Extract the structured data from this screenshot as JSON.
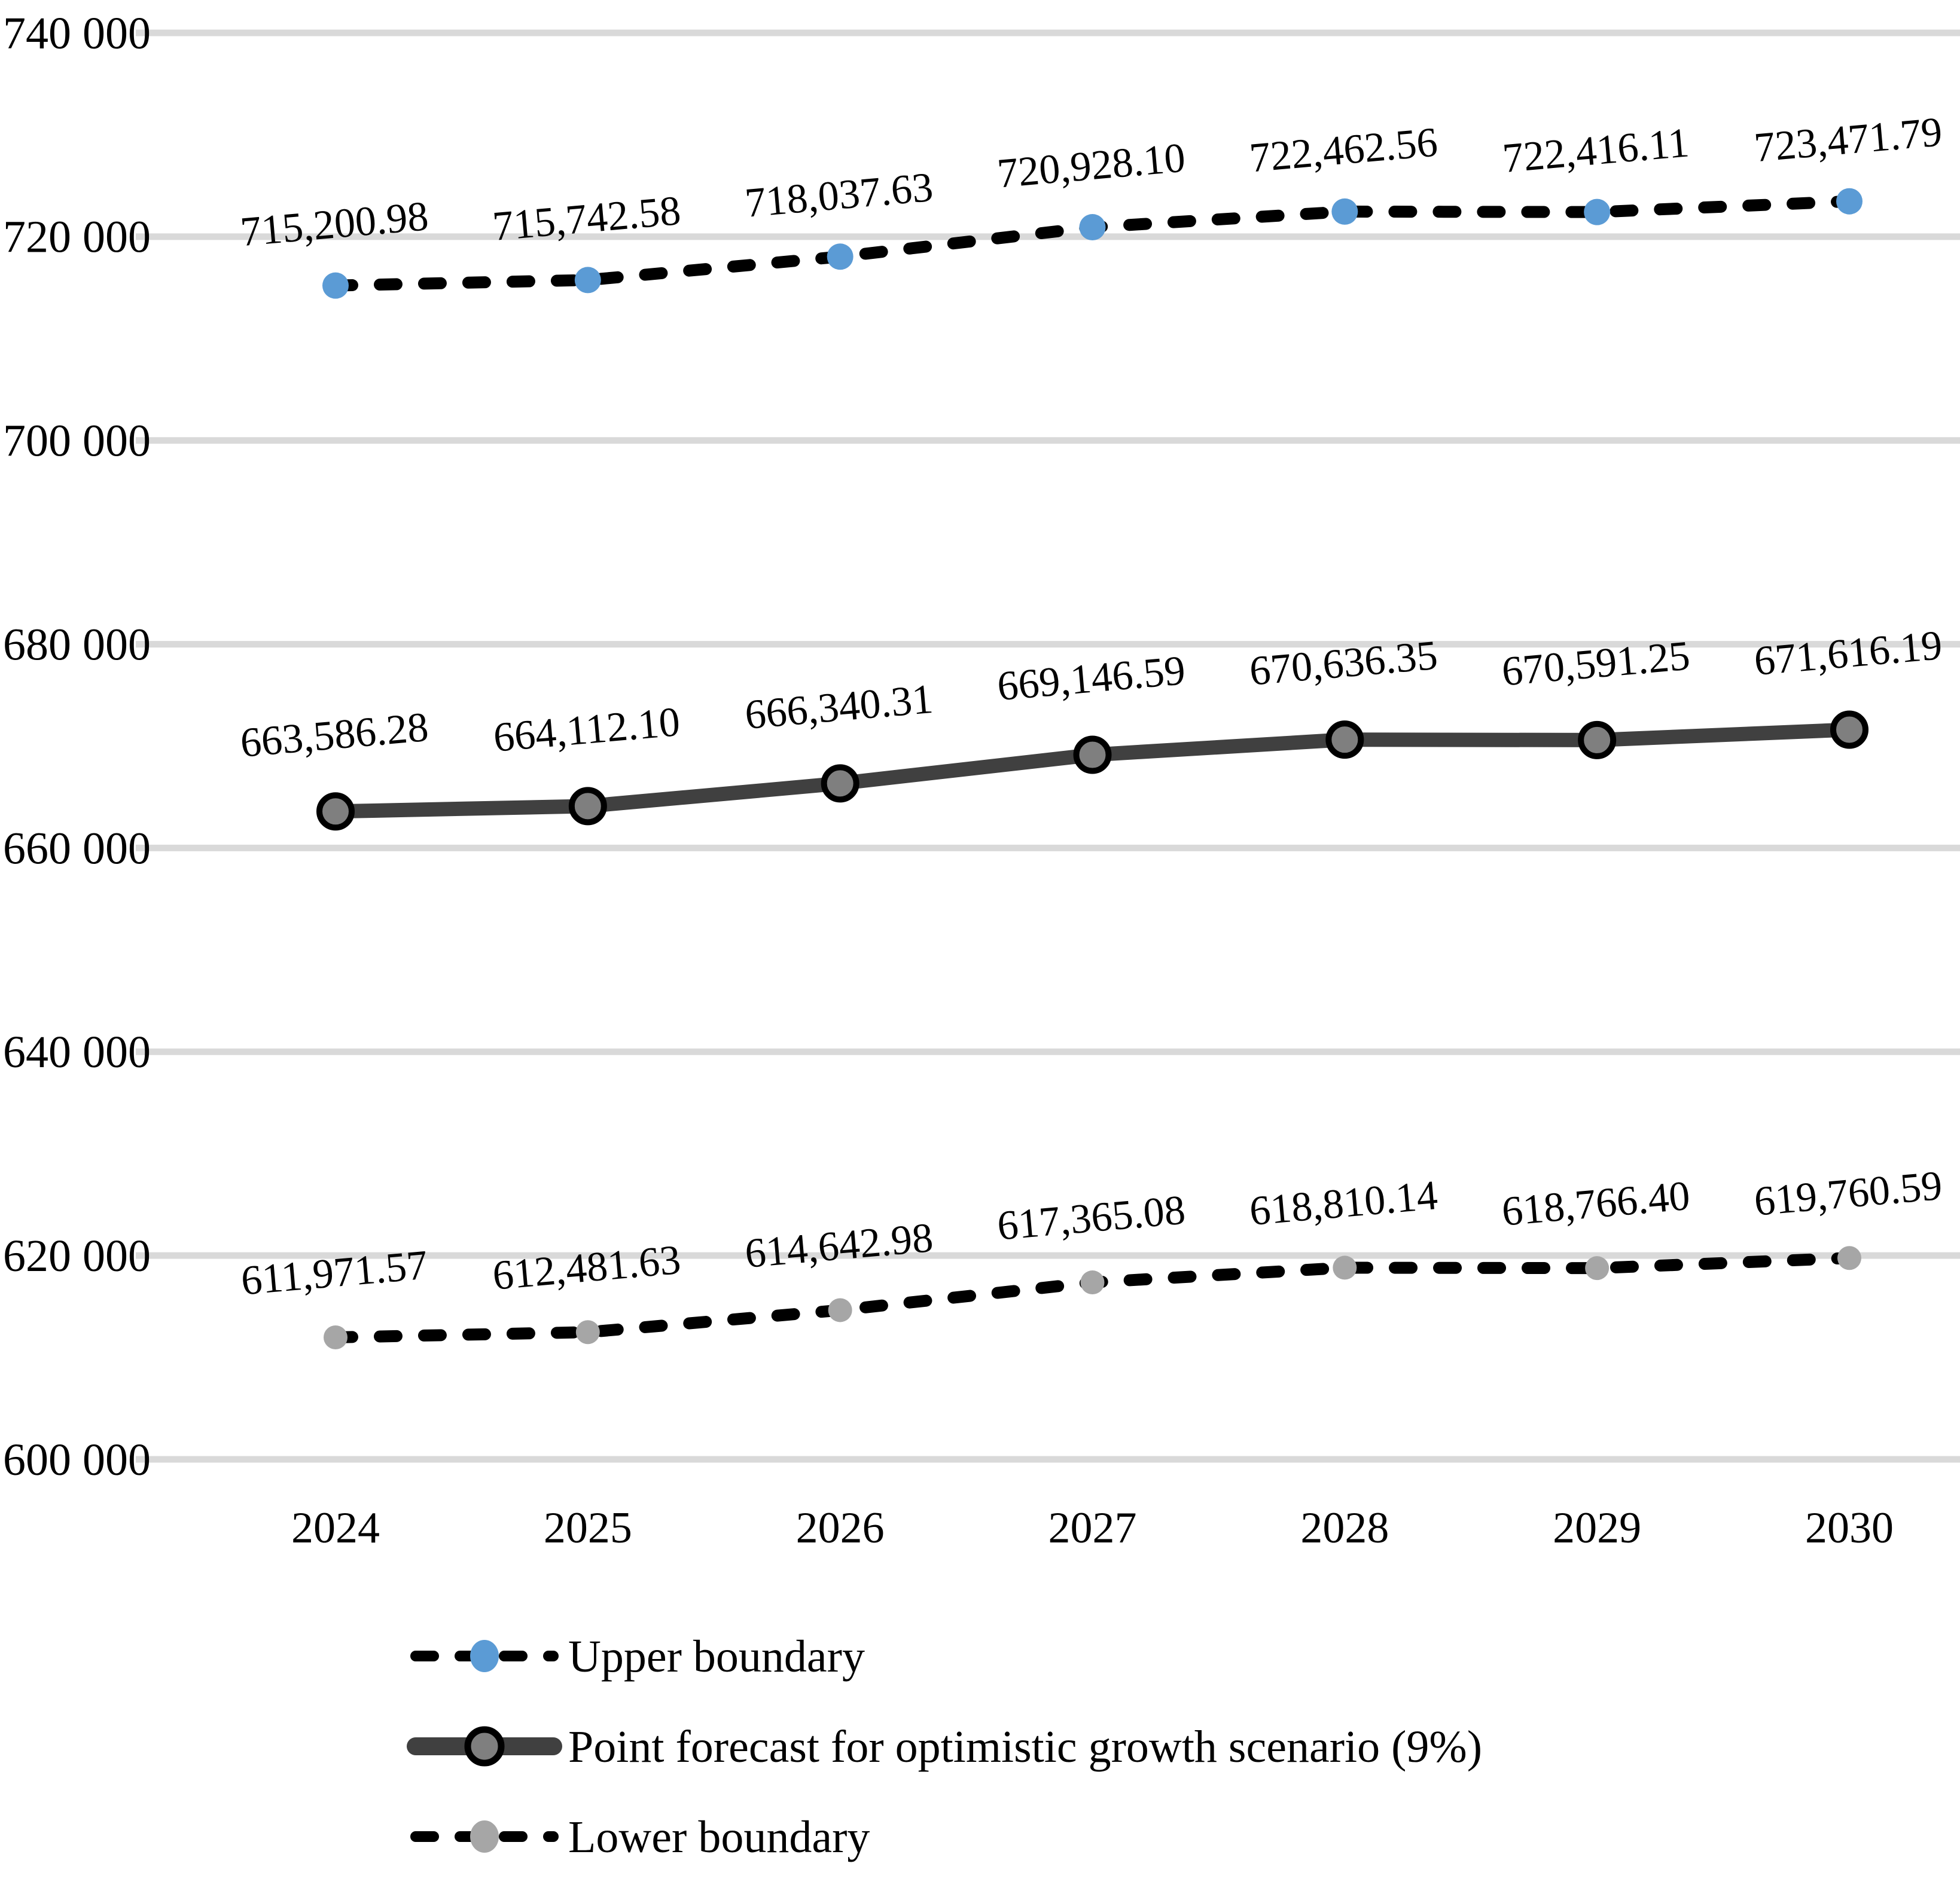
{
  "chart_data": {
    "type": "line",
    "categories": [
      "2024",
      "2025",
      "2026",
      "2027",
      "2028",
      "2029",
      "2030"
    ],
    "series": [
      {
        "name": "Upper boundary",
        "values": [
          715200.98,
          715742.58,
          718037.63,
          720928.1,
          722462.56,
          722416.11,
          723471.79
        ],
        "data_labels": [
          "715,200.98",
          "715,742.58",
          "718,037.63",
          "720,928.10",
          "722,462.56",
          "722,416.11",
          "723,471.79"
        ],
        "line_style": "dashed",
        "line_color": "#000000",
        "marker_color": "#5B9BD5"
      },
      {
        "name": "Point forecast for optimistic growth scenario (9%)",
        "values": [
          663586.28,
          664112.1,
          666340.31,
          669146.59,
          670636.35,
          670591.25,
          671616.19
        ],
        "data_labels": [
          "663,586.28",
          "664,112.10",
          "666,340.31",
          "669,146.59",
          "670,636.35",
          "670,591.25",
          "671,616.19"
        ],
        "line_style": "solid",
        "line_color": "#404040",
        "marker_color": "#7F7F7F",
        "marker_border": "#000000"
      },
      {
        "name": "Lower boundary",
        "values": [
          611971.57,
          612481.63,
          614642.98,
          617365.08,
          618810.14,
          618766.4,
          619760.59
        ],
        "data_labels": [
          "611,971.57",
          "612,481.63",
          "614,642.98",
          "617,365.08",
          "618,810.14",
          "618,766.40",
          "619,760.59"
        ],
        "line_style": "dashed",
        "line_color": "#000000",
        "marker_color": "#A6A6A6"
      }
    ],
    "ylim": [
      600000,
      740000
    ],
    "ytick_step": 20000,
    "ytick_labels": [
      "600 000",
      "620 000",
      "640 000",
      "660 000",
      "680 000",
      "700 000",
      "720 000",
      "740 000"
    ],
    "xlabel": "",
    "ylabel": "",
    "grid": true,
    "legend_position": "bottom-left",
    "gridline_color": "#D9D9D9",
    "text_color": "#000000"
  }
}
